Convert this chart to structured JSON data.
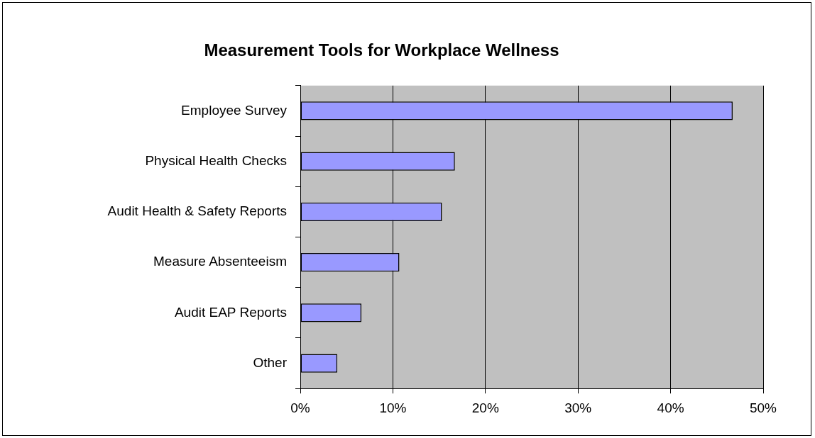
{
  "chart_data": {
    "type": "bar",
    "orientation": "horizontal",
    "title": "Measurement Tools for Workplace Wellness",
    "categories": [
      "Employee Survey",
      "Physical Health Checks",
      "Audit Health & Safety Reports",
      "Measure Absenteeism",
      "Audit EAP Reports",
      "Other"
    ],
    "values": [
      46.7,
      16.7,
      15.3,
      10.7,
      6.6,
      4.0
    ],
    "color": "#9999ff",
    "xlim": [
      0,
      50
    ],
    "xticks": [
      {
        "value": 0,
        "label": "0%"
      },
      {
        "value": 10,
        "label": "10%"
      },
      {
        "value": 20,
        "label": "20%"
      },
      {
        "value": 30,
        "label": "30%"
      },
      {
        "value": 40,
        "label": "40%"
      },
      {
        "value": 50,
        "label": "50%"
      }
    ],
    "grid": "x",
    "legend": false
  }
}
